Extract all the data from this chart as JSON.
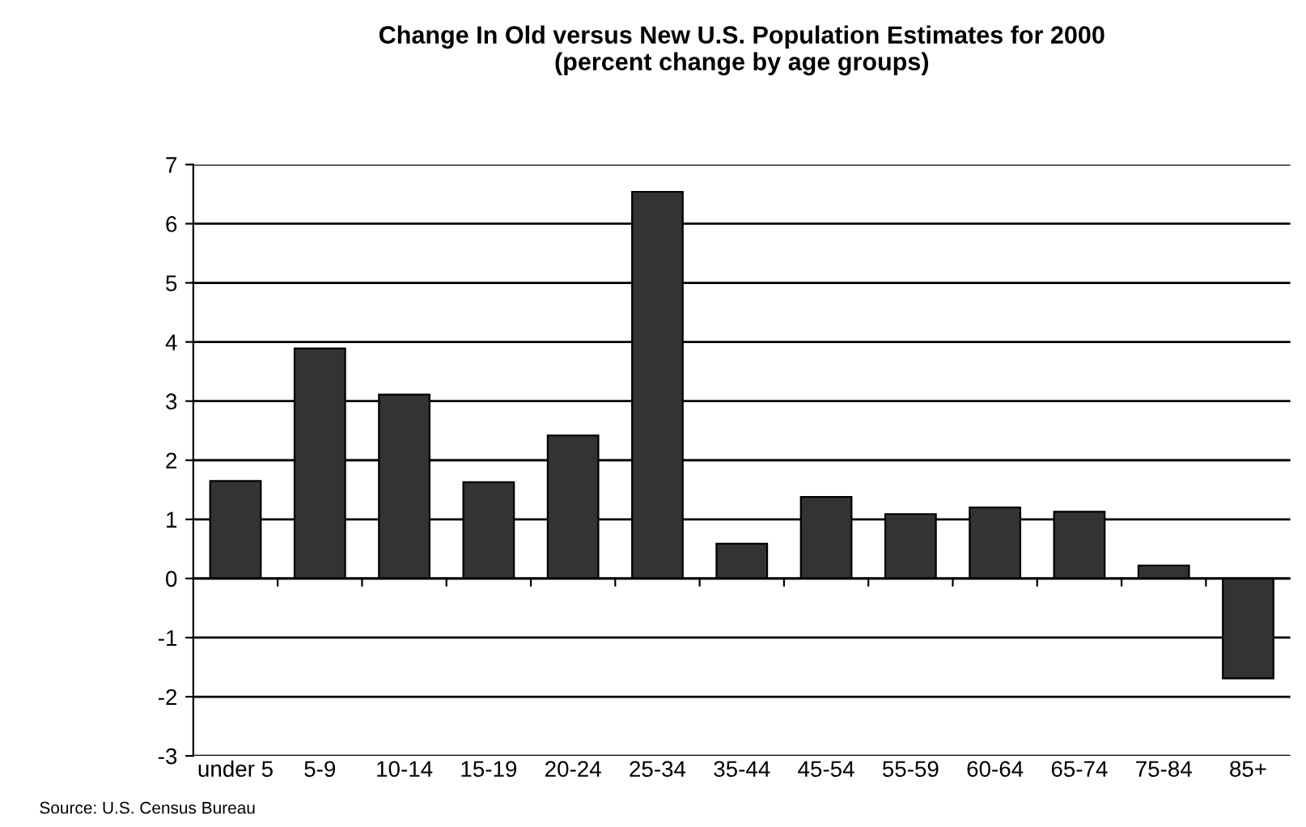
{
  "chart_data": {
    "type": "bar",
    "title": "Change In Old versus New U.S. Population Estimates for 2000\n(percent change by age groups)",
    "categories": [
      "under 5",
      "5-9",
      "10-14",
      "15-19",
      "20-24",
      "25-34",
      "35-44",
      "45-54",
      "55-59",
      "60-64",
      "65-74",
      "75-84",
      "85+"
    ],
    "values": [
      1.65,
      3.89,
      3.11,
      1.63,
      2.42,
      6.54,
      0.59,
      1.38,
      1.09,
      1.2,
      1.13,
      0.22,
      -1.69
    ],
    "color": "#333333",
    "ylim": [
      -3,
      7
    ],
    "yticks": [
      -3,
      -2,
      -1,
      0,
      1,
      2,
      3,
      4,
      5,
      6,
      7
    ],
    "grid": "y",
    "annotations": [
      "Source: U.S. Census Bureau"
    ]
  }
}
